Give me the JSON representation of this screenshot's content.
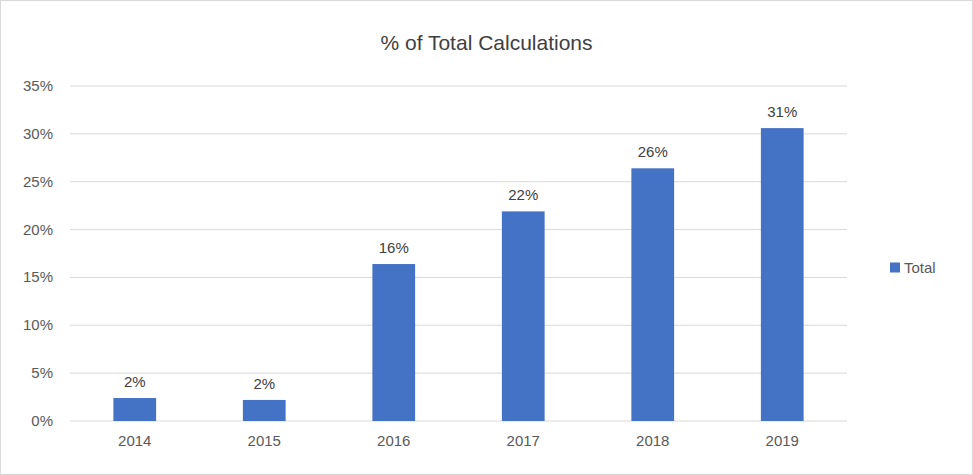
{
  "chart_data": {
    "type": "bar",
    "title": "% of Total Calculations",
    "categories": [
      "2014",
      "2015",
      "2016",
      "2017",
      "2018",
      "2019"
    ],
    "series": [
      {
        "name": "Total",
        "color": "#4472c4",
        "values": [
          2.4,
          2.2,
          16.4,
          21.9,
          26.4,
          30.6
        ],
        "value_labels": [
          "2%",
          "2%",
          "16%",
          "22%",
          "26%",
          "31%"
        ]
      }
    ],
    "ylim": [
      0,
      35
    ],
    "yticks": [
      {
        "value": 0,
        "label": "0%"
      },
      {
        "value": 5,
        "label": "5%"
      },
      {
        "value": 10,
        "label": "10%"
      },
      {
        "value": 15,
        "label": "15%"
      },
      {
        "value": 20,
        "label": "20%"
      },
      {
        "value": 25,
        "label": "25%"
      },
      {
        "value": 30,
        "label": "30%"
      },
      {
        "value": 35,
        "label": "35%"
      }
    ],
    "grid": true,
    "legend": "right",
    "data_labels": true
  }
}
